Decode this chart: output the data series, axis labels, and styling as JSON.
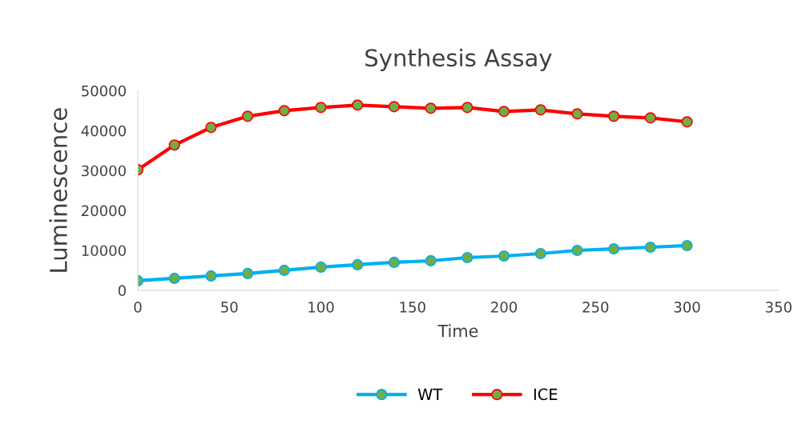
{
  "chart_data": {
    "type": "line",
    "title": "Synthesis Assay",
    "xlabel": "Time",
    "ylabel": "Luminescence",
    "x": [
      0,
      20,
      40,
      60,
      80,
      100,
      120,
      140,
      160,
      180,
      200,
      220,
      240,
      260,
      280,
      300
    ],
    "series": [
      {
        "name": "WT",
        "color": "#00b0f0",
        "values": [
          2400,
          3000,
          3600,
          4200,
          5000,
          5800,
          6400,
          7000,
          7400,
          8200,
          8600,
          9200,
          10000,
          10400,
          10800,
          11200
        ]
      },
      {
        "name": "ICE",
        "color": "#ff0000",
        "values": [
          30200,
          36400,
          40800,
          43600,
          45000,
          45800,
          46400,
          46000,
          45600,
          45800,
          44800,
          45200,
          44200,
          43600,
          43200,
          42200
        ]
      }
    ],
    "xlim": [
      0,
      350
    ],
    "xticks": [
      0,
      50,
      100,
      150,
      200,
      250,
      300,
      350
    ],
    "ylim": [
      0,
      50000
    ],
    "yticks": [
      0,
      10000,
      20000,
      30000,
      40000,
      50000
    ],
    "grid": false,
    "legend": "bottom",
    "marker": "circle",
    "line_style": "solid"
  }
}
